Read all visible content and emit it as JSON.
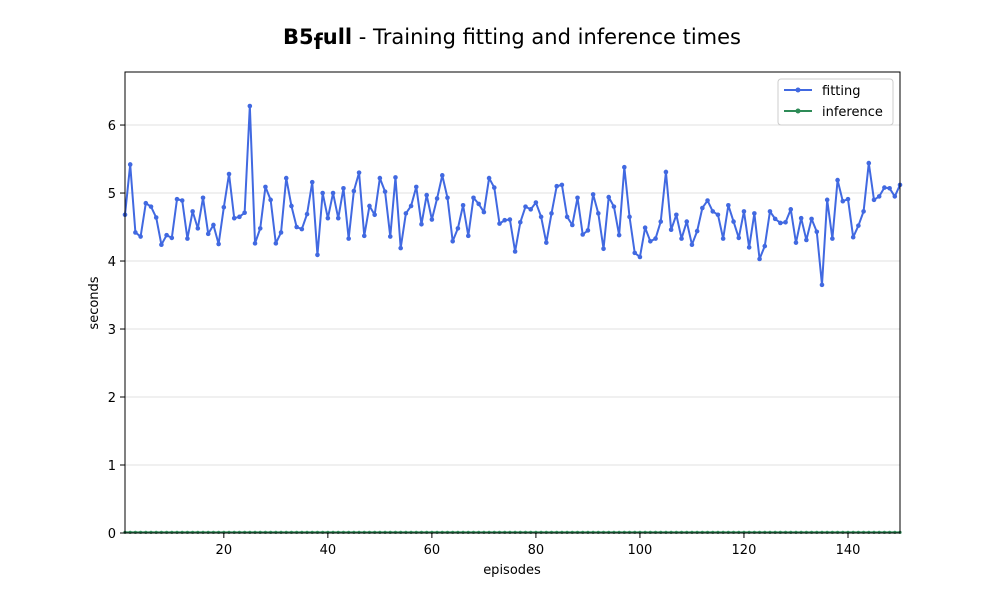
{
  "chart_data": {
    "type": "line",
    "title": {
      "bold_main": "B5",
      "bold_subscript": "f",
      "bold_tail": "ull",
      "rest": " - Training fitting and inference times"
    },
    "xlabel": "episodes",
    "ylabel": "seconds",
    "xlim": [
      1,
      150
    ],
    "ylim": [
      0,
      6.78
    ],
    "xticks": [
      20,
      40,
      60,
      80,
      100,
      120,
      140
    ],
    "yticks": [
      0,
      1,
      2,
      3,
      4,
      5,
      6
    ],
    "grid": "horizontal",
    "legend_position": "top-right",
    "series": [
      {
        "name": "fitting",
        "color": "#4169e1",
        "x": [
          1,
          2,
          3,
          4,
          5,
          6,
          7,
          8,
          9,
          10,
          11,
          12,
          13,
          14,
          15,
          16,
          17,
          18,
          19,
          20,
          21,
          22,
          23,
          24,
          25,
          26,
          27,
          28,
          29,
          30,
          31,
          32,
          33,
          34,
          35,
          36,
          37,
          38,
          39,
          40,
          41,
          42,
          43,
          44,
          45,
          46,
          47,
          48,
          49,
          50,
          51,
          52,
          53,
          54,
          55,
          56,
          57,
          58,
          59,
          60,
          61,
          62,
          63,
          64,
          65,
          66,
          67,
          68,
          69,
          70,
          71,
          72,
          73,
          74,
          75,
          76,
          77,
          78,
          79,
          80,
          81,
          82,
          83,
          84,
          85,
          86,
          87,
          88,
          89,
          90,
          91,
          92,
          93,
          94,
          95,
          96,
          97,
          98,
          99,
          100,
          101,
          102,
          103,
          104,
          105,
          106,
          107,
          108,
          109,
          110,
          111,
          112,
          113,
          114,
          115,
          116,
          117,
          118,
          119,
          120,
          121,
          122,
          123,
          124,
          125,
          126,
          127,
          128,
          129,
          130,
          131,
          132,
          133,
          134,
          135,
          136,
          137,
          138,
          139,
          140,
          141,
          142,
          143,
          144,
          145,
          146,
          147,
          148,
          149,
          150
        ],
        "values": [
          4.68,
          5.42,
          4.42,
          4.36,
          4.85,
          4.8,
          4.64,
          4.24,
          4.38,
          4.34,
          4.91,
          4.89,
          4.33,
          4.73,
          4.48,
          4.93,
          4.4,
          4.53,
          4.25,
          4.79,
          5.28,
          4.63,
          4.65,
          4.71,
          6.28,
          4.26,
          4.48,
          5.09,
          4.9,
          4.26,
          4.42,
          5.22,
          4.81,
          4.5,
          4.47,
          4.69,
          5.16,
          4.09,
          5.0,
          4.63,
          5.0,
          4.63,
          5.07,
          4.33,
          5.03,
          5.3,
          4.37,
          4.81,
          4.68,
          5.22,
          5.02,
          4.36,
          5.23,
          4.19,
          4.7,
          4.81,
          5.09,
          4.54,
          4.97,
          4.61,
          4.92,
          5.26,
          4.93,
          4.29,
          4.48,
          4.82,
          4.37,
          4.93,
          4.84,
          4.72,
          5.22,
          5.08,
          4.55,
          4.6,
          4.61,
          4.14,
          4.57,
          4.8,
          4.76,
          4.86,
          4.65,
          4.27,
          4.7,
          5.1,
          5.12,
          4.65,
          4.53,
          4.93,
          4.39,
          4.45,
          4.98,
          4.7,
          4.18,
          4.94,
          4.8,
          4.38,
          5.38,
          4.65,
          4.12,
          4.06,
          4.49,
          4.29,
          4.33,
          4.58,
          5.31,
          4.46,
          4.68,
          4.33,
          4.58,
          4.24,
          4.44,
          4.78,
          4.89,
          4.73,
          4.68,
          4.33,
          4.82,
          4.58,
          4.34,
          4.73,
          4.2,
          4.7,
          4.03,
          4.22,
          4.73,
          4.62,
          4.56,
          4.57,
          4.76,
          4.27,
          4.63,
          4.31,
          4.62,
          4.43,
          3.65,
          4.9,
          4.33,
          5.19,
          4.88,
          4.91,
          4.35,
          4.52,
          4.73,
          5.44,
          4.9,
          4.95,
          5.08,
          5.07,
          4.95,
          5.12
        ]
      },
      {
        "name": "inference",
        "color": "#2e8b57",
        "x_range": [
          1,
          150
        ],
        "value": 0.01
      }
    ]
  }
}
